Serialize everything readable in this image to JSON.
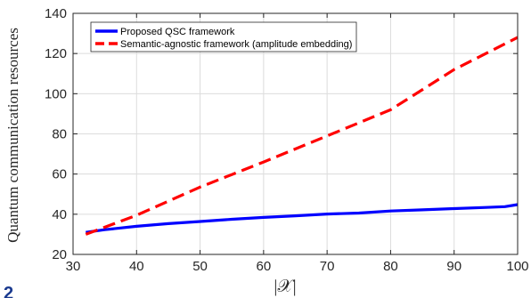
{
  "chart_data": {
    "type": "line",
    "xlabel": "|𝒳|",
    "ylabel": "Quantum communication resources",
    "xlim": [
      30,
      100
    ],
    "ylim": [
      20,
      140
    ],
    "x_ticks": [
      30,
      40,
      50,
      60,
      70,
      80,
      90,
      100
    ],
    "y_ticks": [
      20,
      40,
      60,
      80,
      100,
      120,
      140
    ],
    "x_tick_labels": [
      "30",
      "40",
      "50",
      "60",
      "70",
      "80",
      "90",
      "100"
    ],
    "y_tick_labels": [
      "20",
      "40",
      "60",
      "80",
      "100",
      "120",
      "140"
    ],
    "grid": true,
    "legend_position": "top-left",
    "series": [
      {
        "name": "Proposed QSC framework",
        "color": "#0000ff",
        "style": "solid",
        "x": [
          32,
          35,
          40,
          45,
          50,
          55,
          60,
          65,
          70,
          75,
          80,
          85,
          90,
          95,
          98,
          100
        ],
        "y": [
          31,
          32.3,
          34,
          35.3,
          36.4,
          37.5,
          38.4,
          39.2,
          40.1,
          40.6,
          41.6,
          42.2,
          42.8,
          43.4,
          43.8,
          44.8
        ]
      },
      {
        "name": "Semantic-agnostic framework (amplitude embedding)",
        "color": "#ff0000",
        "style": "dashed",
        "x": [
          32,
          40,
          50,
          60,
          70,
          80,
          90,
          100
        ],
        "y": [
          30,
          39.5,
          53.5,
          66,
          79,
          92,
          112,
          128
        ]
      }
    ]
  },
  "caption_fragment": "2"
}
